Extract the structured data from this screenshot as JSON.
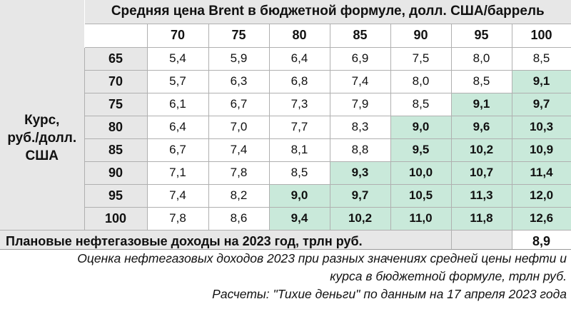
{
  "table": {
    "title": "Средняя цена Brent в бюджетной формуле, долл. США/баррель",
    "side_label": [
      "Курс,",
      "руб./долл.",
      "США"
    ],
    "columns": [
      "70",
      "75",
      "80",
      "85",
      "90",
      "95",
      "100"
    ],
    "rows": [
      {
        "label": "65",
        "values": [
          "5,4",
          "5,9",
          "6,4",
          "6,9",
          "7,5",
          "8,0",
          "8,5"
        ],
        "highlight": [
          false,
          false,
          false,
          false,
          false,
          false,
          false
        ]
      },
      {
        "label": "70",
        "values": [
          "5,7",
          "6,3",
          "6,8",
          "7,4",
          "8,0",
          "8,5",
          "9,1"
        ],
        "highlight": [
          false,
          false,
          false,
          false,
          false,
          false,
          true
        ]
      },
      {
        "label": "75",
        "values": [
          "6,1",
          "6,7",
          "7,3",
          "7,9",
          "8,5",
          "9,1",
          "9,7"
        ],
        "highlight": [
          false,
          false,
          false,
          false,
          false,
          true,
          true
        ]
      },
      {
        "label": "80",
        "values": [
          "6,4",
          "7,0",
          "7,7",
          "8,3",
          "9,0",
          "9,6",
          "10,3"
        ],
        "highlight": [
          false,
          false,
          false,
          false,
          true,
          true,
          true
        ]
      },
      {
        "label": "85",
        "values": [
          "6,7",
          "7,4",
          "8,1",
          "8,8",
          "9,5",
          "10,2",
          "10,9"
        ],
        "highlight": [
          false,
          false,
          false,
          false,
          true,
          true,
          true
        ]
      },
      {
        "label": "90",
        "values": [
          "7,1",
          "7,8",
          "8,5",
          "9,3",
          "10,0",
          "10,7",
          "11,4"
        ],
        "highlight": [
          false,
          false,
          false,
          true,
          true,
          true,
          true
        ]
      },
      {
        "label": "95",
        "values": [
          "7,4",
          "8,2",
          "9,0",
          "9,7",
          "10,5",
          "11,3",
          "12,0"
        ],
        "highlight": [
          false,
          false,
          true,
          true,
          true,
          true,
          true
        ]
      },
      {
        "label": "100",
        "values": [
          "7,8",
          "8,6",
          "9,4",
          "10,2",
          "11,0",
          "11,8",
          "12,6"
        ],
        "highlight": [
          false,
          false,
          true,
          true,
          true,
          true,
          true
        ]
      }
    ],
    "summary_label": "Плановые нефтегазовые доходы на 2023 год, трлн руб.",
    "summary_value": "8,9"
  },
  "caption": {
    "line1": "Оценка нефтегазовых доходов 2023 при разных значениях средней цены нефти и",
    "line2": "курса в бюджетной формуле, трлн руб.",
    "line3": "Расчеты: \"Тихие деньги\" по данным на 17 апреля 2023 года"
  },
  "colors": {
    "highlight": "#c9e9da",
    "header_bg": "#e7e7e7",
    "border": "#b0b0b0"
  }
}
